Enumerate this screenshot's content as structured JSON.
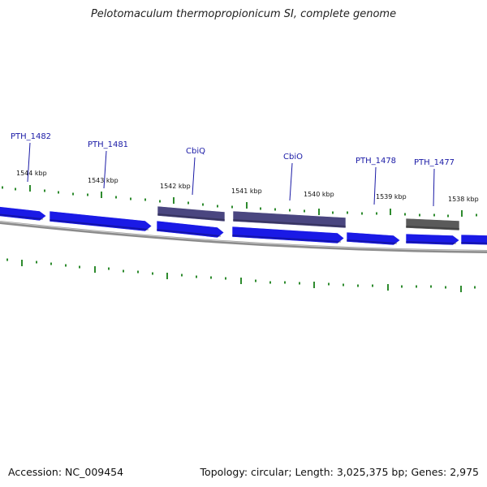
{
  "title": "Pelotomaculum thermopropionicum SI, complete genome",
  "footer": {
    "accession_label": "Accession:",
    "accession": "NC_009454",
    "topology_label": "Topology:",
    "topology": "circular",
    "length_label": "Length:",
    "length": "3,025,375 bp",
    "genes_label": "Genes:",
    "genes": "2,975"
  },
  "colors": {
    "forward_gene": "#1a1ae6",
    "reverse_gene_named": "#4a4680",
    "reverse_gene_unnamed": "#5a5a5a",
    "backbone": "#8c8c8c",
    "tick": "#2e8b2e",
    "gene_label": "#1a1aa6",
    "scale_label": "#111111"
  },
  "scale_labels": [
    {
      "kbp": 1544,
      "text": "1544 kbp"
    },
    {
      "kbp": 1543,
      "text": "1543 kbp"
    },
    {
      "kbp": 1542,
      "text": "1542 kbp"
    },
    {
      "kbp": 1541,
      "text": "1541 kbp"
    },
    {
      "kbp": 1540,
      "text": "1540 kbp"
    },
    {
      "kbp": 1539,
      "text": "1539 kbp"
    },
    {
      "kbp": 1538,
      "text": "1538 kbp"
    }
  ],
  "gene_labels": [
    {
      "name": "PTH_1482",
      "strand": "forward"
    },
    {
      "name": "PTH_1481",
      "strand": "forward"
    },
    {
      "name": "CbiQ",
      "strand": "reverse"
    },
    {
      "name": "CbiO",
      "strand": "reverse"
    },
    {
      "name": "PTH_1478",
      "strand": "forward"
    },
    {
      "name": "PTH_1477",
      "strand": "reverse"
    }
  ]
}
